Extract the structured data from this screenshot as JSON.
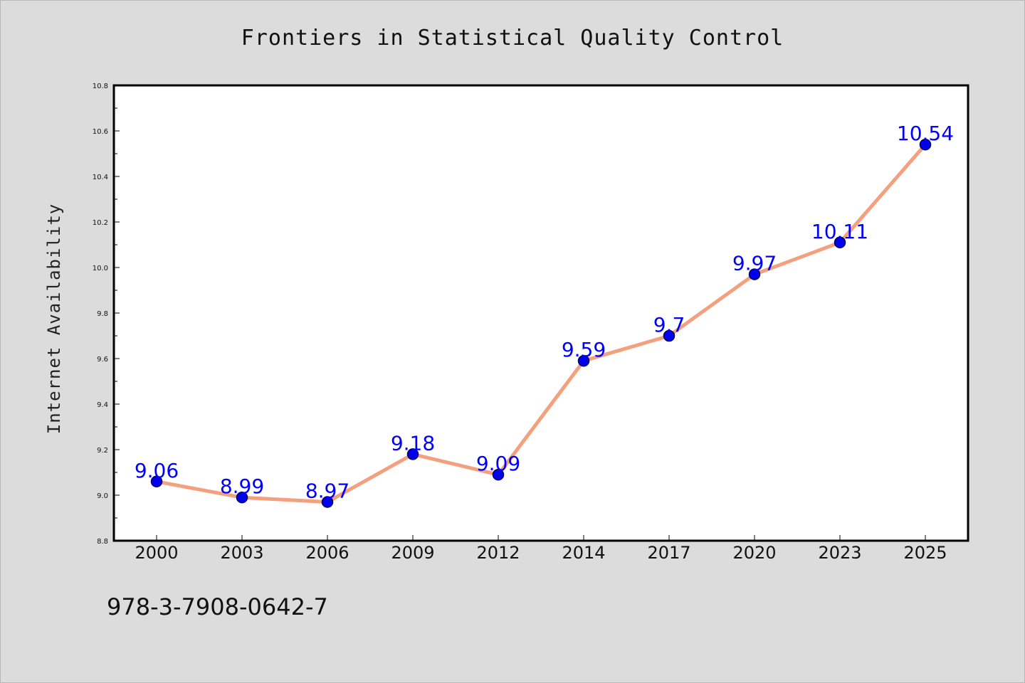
{
  "title": "Frontiers in Statistical Quality Control",
  "footer": "978-3-7908-0642-7",
  "chart_data": {
    "type": "line",
    "title": "Frontiers in Statistical Quality Control",
    "xlabel": "",
    "ylabel": "Internet Availability",
    "categories": [
      "2000",
      "2003",
      "2006",
      "2009",
      "2012",
      "2014",
      "2017",
      "2020",
      "2023",
      "2025"
    ],
    "series": [
      {
        "values": [
          9.06,
          8.99,
          8.97,
          9.18,
          9.09,
          9.59,
          9.7,
          9.97,
          10.11,
          10.54
        ],
        "labels": [
          "9.06",
          "8.99",
          "8.97",
          "9.18",
          "9.09",
          "9.59",
          "9.7",
          "9.97",
          "10.11",
          "10.54"
        ]
      }
    ],
    "ylim": [
      8.8,
      10.8
    ],
    "yticks": [
      "8.8",
      "9.0",
      "9.2",
      "9.4",
      "9.6",
      "9.8",
      "10.0",
      "10.2",
      "10.4",
      "10.6",
      "10.8"
    ],
    "grid": false,
    "legend": "none",
    "colors": {
      "line": "#f4a07f",
      "marker_fill": "#0000ee",
      "marker_edge": "#00005a",
      "data_label": "#0000ff",
      "plot_background": "#ffffff",
      "figure_background": "#dcdcdc"
    }
  }
}
